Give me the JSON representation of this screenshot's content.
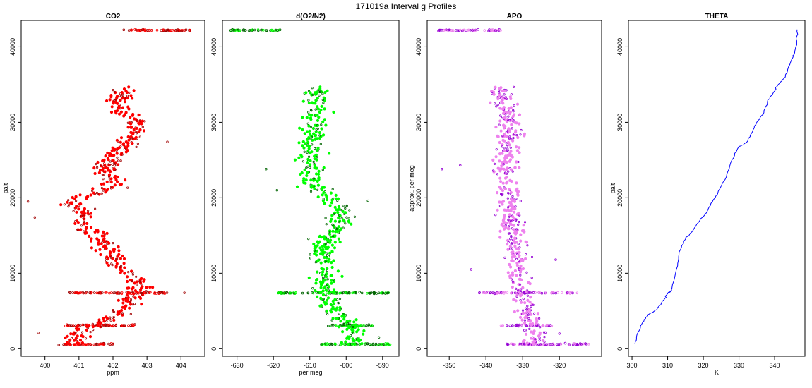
{
  "figure": {
    "title": "171019a   Interval g Profiles"
  },
  "chart_data": [
    {
      "type": "scatter",
      "title": "CO2",
      "xlabel": "ppm",
      "ylabel": "palt",
      "xlim": [
        399.3,
        404.7
      ],
      "ylim": [
        -1000,
        43500
      ],
      "x_ticks": [
        400,
        401,
        402,
        403,
        404
      ],
      "y_ticks": [
        0,
        10000,
        20000,
        30000,
        40000
      ],
      "colors": [
        "#ff0000",
        "#a00000"
      ],
      "bands": [
        {
          "x": [
            402.3,
            404.3
          ],
          "y": 42200
        },
        {
          "x": [
            400.7,
            403.7
          ],
          "y": 7400
        },
        {
          "x": [
            400.6,
            402.7
          ],
          "y": 3100
        },
        {
          "x": [
            400.4,
            402.0
          ],
          "y": 600
        }
      ],
      "path": [
        {
          "y": 700,
          "x": 400.9
        },
        {
          "y": 2000,
          "x": 401.0
        },
        {
          "y": 3100,
          "x": 401.4
        },
        {
          "y": 4500,
          "x": 402.1
        },
        {
          "y": 6500,
          "x": 402.6
        },
        {
          "y": 8500,
          "x": 402.8
        },
        {
          "y": 10500,
          "x": 402.3
        },
        {
          "y": 12000,
          "x": 402.0
        },
        {
          "y": 14500,
          "x": 401.6
        },
        {
          "y": 16500,
          "x": 401.1
        },
        {
          "y": 18000,
          "x": 401.2
        },
        {
          "y": 19500,
          "x": 400.7
        },
        {
          "y": 21500,
          "x": 402.0
        },
        {
          "y": 23500,
          "x": 401.8
        },
        {
          "y": 26000,
          "x": 402.1
        },
        {
          "y": 28500,
          "x": 402.7
        },
        {
          "y": 30000,
          "x": 402.7
        },
        {
          "y": 32500,
          "x": 402.1
        },
        {
          "y": 34500,
          "x": 402.3
        }
      ],
      "spread": 0.35,
      "outliers": [
        [
          399.5,
          19500
        ],
        [
          399.7,
          17400
        ],
        [
          399.8,
          2100
        ],
        [
          403.6,
          27400
        ],
        [
          404.1,
          7400
        ]
      ]
    },
    {
      "type": "scatter",
      "title": "d(O2/N2)",
      "xlabel": "per meg",
      "ylabel": "",
      "xlim": [
        -634,
        -585.5
      ],
      "ylim": [
        -1000,
        43500
      ],
      "x_ticks": [
        -630,
        -620,
        -610,
        -600,
        -590
      ],
      "y_ticks": [
        0,
        10000,
        20000,
        30000,
        40000
      ],
      "colors": [
        "#00ff00",
        "#006400"
      ],
      "bands": [
        {
          "x": [
            -632,
            -618
          ],
          "y": 42200
        },
        {
          "x": [
            -619,
            -588
          ],
          "y": 7400
        },
        {
          "x": [
            -605,
            -592
          ],
          "y": 3100
        },
        {
          "x": [
            -607,
            -587
          ],
          "y": 600
        }
      ],
      "path": [
        {
          "y": 700,
          "x": -598
        },
        {
          "y": 2000,
          "x": -598
        },
        {
          "y": 3100,
          "x": -599
        },
        {
          "y": 4500,
          "x": -602
        },
        {
          "y": 6500,
          "x": -605
        },
        {
          "y": 8500,
          "x": -606
        },
        {
          "y": 10500,
          "x": -606
        },
        {
          "y": 12000,
          "x": -607
        },
        {
          "y": 14500,
          "x": -605
        },
        {
          "y": 16500,
          "x": -602
        },
        {
          "y": 18500,
          "x": -601
        },
        {
          "y": 20500,
          "x": -605
        },
        {
          "y": 22000,
          "x": -610
        },
        {
          "y": 24000,
          "x": -609
        },
        {
          "y": 26000,
          "x": -610
        },
        {
          "y": 28500,
          "x": -609
        },
        {
          "y": 30500,
          "x": -609
        },
        {
          "y": 32500,
          "x": -608
        },
        {
          "y": 34500,
          "x": -608
        }
      ],
      "spread": 3.3,
      "outliers": [
        [
          -622,
          23800
        ],
        [
          -619,
          21000
        ],
        [
          -594,
          19600
        ],
        [
          -591,
          1500
        ]
      ]
    },
    {
      "type": "scatter",
      "title": "APO",
      "xlabel": "",
      "ylabel": "approx. per meg",
      "xlim": [
        -356,
        -308.5
      ],
      "ylim": [
        -1000,
        43500
      ],
      "x_ticks": [
        -350,
        -340,
        -330,
        -320
      ],
      "y_ticks": [
        0,
        10000,
        20000,
        30000,
        40000
      ],
      "colors": [
        "#ee82ee",
        "#9400d3"
      ],
      "bands": [
        {
          "x": [
            -353,
            -336
          ],
          "y": 42200
        },
        {
          "x": [
            -342,
            -315
          ],
          "y": 7400
        },
        {
          "x": [
            -336,
            -322
          ],
          "y": 3100
        },
        {
          "x": [
            -335,
            -312
          ],
          "y": 600
        }
      ],
      "path": [
        {
          "y": 700,
          "x": -326
        },
        {
          "y": 2000,
          "x": -326
        },
        {
          "y": 3100,
          "x": -327
        },
        {
          "y": 4500,
          "x": -329
        },
        {
          "y": 6500,
          "x": -330
        },
        {
          "y": 8500,
          "x": -331
        },
        {
          "y": 10500,
          "x": -332
        },
        {
          "y": 12000,
          "x": -331
        },
        {
          "y": 14500,
          "x": -332
        },
        {
          "y": 16500,
          "x": -333
        },
        {
          "y": 18500,
          "x": -333
        },
        {
          "y": 20500,
          "x": -334
        },
        {
          "y": 22500,
          "x": -335
        },
        {
          "y": 24500,
          "x": -334
        },
        {
          "y": 26500,
          "x": -334
        },
        {
          "y": 28500,
          "x": -334
        },
        {
          "y": 30500,
          "x": -334
        },
        {
          "y": 32500,
          "x": -335
        },
        {
          "y": 34500,
          "x": -336
        }
      ],
      "spread": 3.2,
      "outliers": [
        [
          -352,
          23800
        ],
        [
          -347,
          24300
        ],
        [
          -344,
          10500
        ],
        [
          -321,
          11800
        ],
        [
          -320,
          2000
        ],
        [
          -314,
          600
        ]
      ]
    },
    {
      "type": "line",
      "title": "THETA",
      "xlabel": "K",
      "ylabel": "palt",
      "xlim": [
        299,
        348.5
      ],
      "ylim": [
        -1000,
        43500
      ],
      "x_ticks": [
        300,
        310,
        320,
        330,
        340
      ],
      "y_ticks": [
        0,
        10000,
        20000,
        30000,
        40000
      ],
      "colors": [
        "#0000ff"
      ],
      "series": [
        {
          "x": [
            300.8,
            301.5,
            303.0,
            304.5,
            307.0,
            309.0,
            310.2,
            310.8,
            311.2,
            312.8,
            313.2,
            315.0,
            317.5,
            320.0,
            322.0,
            324.0,
            326.5,
            328.0,
            330.0,
            332.0,
            333.5,
            335.0,
            337.0,
            338.0,
            339.5,
            341.0,
            343.0,
            344.5,
            345.5,
            346.2,
            346.3
          ],
          "y": [
            700,
            2000,
            3500,
            4500,
            5200,
            6500,
            7400,
            7600,
            8000,
            11000,
            12800,
            14500,
            16000,
            17500,
            19000,
            20500,
            22800,
            25000,
            26800,
            27300,
            28500,
            30000,
            31300,
            32800,
            33800,
            35000,
            36000,
            38000,
            39000,
            40500,
            42300
          ]
        }
      ]
    }
  ]
}
